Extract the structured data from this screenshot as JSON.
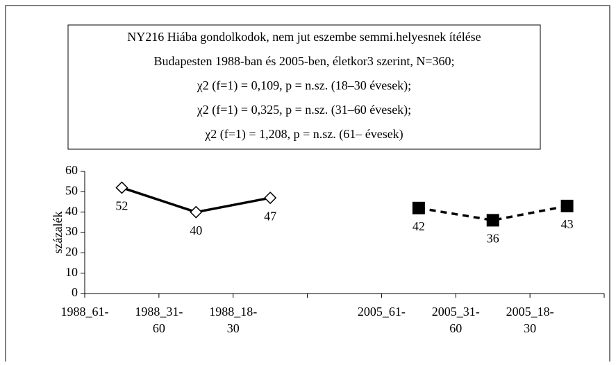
{
  "chart_data": {
    "type": "line",
    "title": [
      "NY216 Hiába gondolkodok, nem jut eszembe semmi.helyesnek ítélése",
      "Budapesten 1988-ban és 2005-ben, életkor3 szerint, N=360;",
      "χ2 (f=1) = 0,109, p = n.sz. (18–30 évesek);",
      "χ2 (f=1) = 0,325, p = n.sz. (31–60 évesek);",
      "χ2 (f=1) = 1,208, p = n.sz. (61– évesek)"
    ],
    "y_label": "százalék",
    "categories": [
      "1988_61-",
      "1988_31-60",
      "1988_18-30",
      null,
      "2005_61-",
      "2005_31-60",
      "2005_18-30"
    ],
    "series": [
      {
        "color": "#000000",
        "marker": "diamond",
        "dash": false,
        "values": [
          52,
          40,
          47,
          null,
          null,
          null,
          null
        ]
      },
      {
        "color": "#000000",
        "marker": "square",
        "dash": true,
        "values": [
          null,
          null,
          null,
          null,
          42,
          36,
          43
        ]
      }
    ],
    "ylim": [
      0,
      60
    ],
    "yticks": [
      0,
      10,
      20,
      30,
      40,
      50,
      60
    ]
  }
}
